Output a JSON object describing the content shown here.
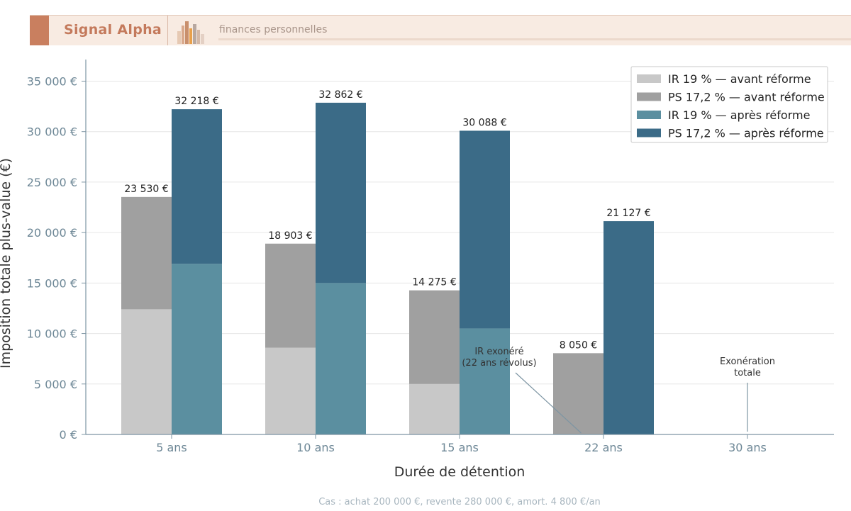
{
  "header": {
    "brand": "Signal Alpha",
    "tagline": "finances personnelles",
    "accent_color": "#c97f5f"
  },
  "caption": "Cas : achat 200 000 €, revente 280 000 €, amort. 4 800 €/an",
  "chart_data": {
    "type": "bar",
    "stacked": true,
    "title": "",
    "xlabel": "Durée de détention",
    "ylabel": "Imposition totale plus-value (€)",
    "ylim": [
      0,
      37000
    ],
    "yticks": [
      0,
      5000,
      10000,
      15000,
      20000,
      25000,
      30000,
      35000
    ],
    "ytick_labels": [
      "0 €",
      "5 000 €",
      "10 000 €",
      "15 000 €",
      "20 000 €",
      "25 000 €",
      "30 000 €",
      "35 000 €"
    ],
    "grid": true,
    "legend_position": "top-right",
    "categories": [
      "5 ans",
      "10 ans",
      "15 ans",
      "22 ans",
      "30 ans"
    ],
    "groups": [
      {
        "name": "avant",
        "totals_labels": [
          "23 530 €",
          "18 903 €",
          "14 275 €",
          "8 050 €",
          ""
        ],
        "series": [
          {
            "name": "IR 19 % — avant réforme",
            "color": "#c8c8c8",
            "values": [
              12400,
              8600,
              5000,
              0,
              0
            ]
          },
          {
            "name": "PS 17,2 % — avant réforme",
            "color": "#a0a0a0",
            "values": [
              11130,
              10303,
              9275,
              8050,
              0
            ]
          }
        ]
      },
      {
        "name": "après",
        "totals_labels": [
          "32 218 €",
          "32 862 €",
          "30 088 €",
          "21 127 €",
          ""
        ],
        "series": [
          {
            "name": "IR 19 % — après réforme",
            "color": "#5b8fa0",
            "values": [
              16900,
              15000,
              10500,
              0,
              0
            ]
          },
          {
            "name": "PS 17,2 % — après réforme",
            "color": "#3b6b87",
            "values": [
              15318,
              17862,
              19588,
              21127,
              0
            ]
          }
        ]
      }
    ],
    "annotations": [
      {
        "lines": [
          "IR exonéré",
          "(22 ans révolus)"
        ],
        "category": "22 ans",
        "group": "avant",
        "value": 0
      },
      {
        "lines": [
          "Exonération",
          "totale"
        ],
        "category": "30 ans",
        "group": "center",
        "value": 0
      }
    ]
  }
}
